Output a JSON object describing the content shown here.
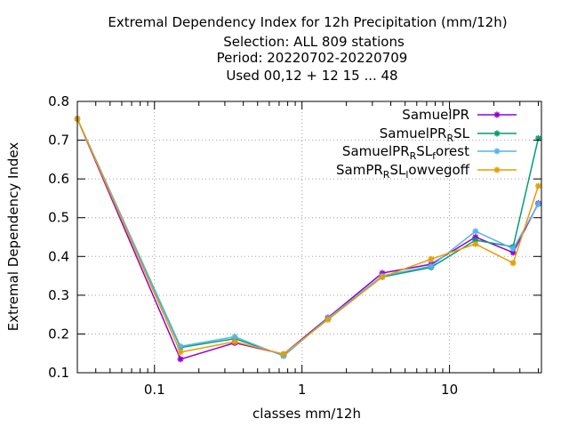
{
  "chart_data": {
    "type": "line",
    "title_lines": [
      "Extremal Dependency Index  for 12h Precipitation (mm/12h)",
      "Selection: ALL    809 stations",
      "Period: 20220702-20220709",
      "Used  00,12  + 12 15 ... 48"
    ],
    "xlabel": "classes mm/12h",
    "ylabel": "Extremal Dependency Index",
    "x_scale": "log",
    "xlim": [
      0.03,
      42
    ],
    "ylim": [
      0.1,
      0.8
    ],
    "x_ticks": [
      0.1,
      1,
      10
    ],
    "x_tick_labels": [
      "0.1",
      "1",
      "10"
    ],
    "y_ticks": [
      0.1,
      0.2,
      0.3,
      0.4,
      0.5,
      0.6,
      0.7,
      0.8
    ],
    "y_tick_labels": [
      "0.1",
      "0.2",
      "0.3",
      "0.4",
      "0.5",
      "0.6",
      "0.7",
      "0.8"
    ],
    "grid": true,
    "legend_position": "top-right",
    "x": [
      0.03,
      0.15,
      0.35,
      0.75,
      1.5,
      3.5,
      7.5,
      15,
      27,
      40
    ],
    "series": [
      {
        "name": "SamuelPR",
        "color": "#9400d3",
        "values": [
          0.755,
          0.135,
          0.177,
          0.148,
          0.242,
          0.357,
          0.38,
          0.45,
          0.41,
          0.537
        ]
      },
      {
        "name": "SamuelPR_RSL",
        "color": "#009e73",
        "values": [
          0.755,
          0.165,
          0.188,
          0.145,
          0.24,
          0.347,
          0.372,
          0.442,
          0.425,
          0.705
        ]
      },
      {
        "name": "SamuelPR_RSL_forest",
        "color": "#56b4e9",
        "values": [
          0.755,
          0.168,
          0.193,
          0.143,
          0.24,
          0.35,
          0.375,
          0.465,
          0.42,
          0.535
        ]
      },
      {
        "name": "SamPR_RSL_lowvegoff",
        "color": "#e69f00",
        "values": [
          0.755,
          0.153,
          0.18,
          0.148,
          0.237,
          0.347,
          0.393,
          0.432,
          0.383,
          0.582
        ]
      }
    ]
  },
  "legend": [
    {
      "base": "SamuelPR",
      "parts": []
    },
    {
      "base": "SamuelPR",
      "parts": [
        {
          "sub": "R"
        },
        {
          "text": "SL"
        }
      ]
    },
    {
      "base": "SamuelPR",
      "parts": [
        {
          "sub": "R"
        },
        {
          "text": "SL"
        },
        {
          "sub": "f"
        },
        {
          "text": "orest"
        }
      ]
    },
    {
      "base": "SamPR",
      "parts": [
        {
          "sub": "R"
        },
        {
          "text": "SL"
        },
        {
          "sub": "l"
        },
        {
          "text": "owvegoff"
        }
      ]
    }
  ]
}
